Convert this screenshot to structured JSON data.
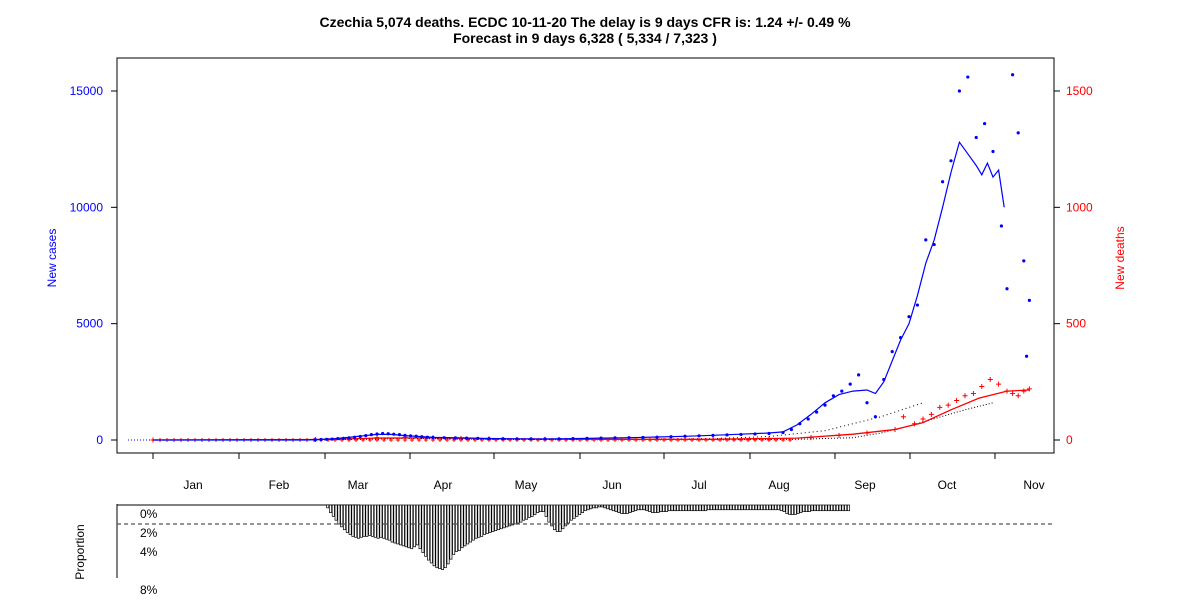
{
  "title_line1": "Czechia 5,074 deaths. ECDC 10-11-20 The delay is 9 days CFR is: 1.24 +/- 0.49 %",
  "title_line2": "Forecast in 9 days 6,328 ( 5,334 / 7,323 )",
  "colors": {
    "cases": "#0000ff",
    "deaths": "#ff0000",
    "forecast": "#000000",
    "proportion": "#000000"
  },
  "chart_data": [
    {
      "type": "line",
      "ylabel_left": "New cases",
      "ylabel_right": "New deaths",
      "months": [
        "Jan",
        "Feb",
        "Mar",
        "Apr",
        "May",
        "Jun",
        "Jul",
        "Aug",
        "Sep",
        "Oct",
        "Nov"
      ],
      "left_ticks": [
        "0",
        "5000",
        "10000",
        "15000"
      ],
      "right_ticks": [
        "0",
        "500",
        "1000",
        "1500"
      ],
      "ylim_left": [
        0,
        16000
      ],
      "ylim_right": [
        0,
        1600
      ],
      "cases_points": [
        [
          58,
          10
        ],
        [
          60,
          20
        ],
        [
          62,
          30
        ],
        [
          64,
          40
        ],
        [
          66,
          60
        ],
        [
          68,
          70
        ],
        [
          70,
          90
        ],
        [
          72,
          120
        ],
        [
          74,
          150
        ],
        [
          76,
          190
        ],
        [
          78,
          230
        ],
        [
          80,
          260
        ],
        [
          82,
          280
        ],
        [
          84,
          270
        ],
        [
          86,
          250
        ],
        [
          88,
          230
        ],
        [
          90,
          200
        ],
        [
          92,
          180
        ],
        [
          94,
          160
        ],
        [
          96,
          140
        ],
        [
          98,
          120
        ],
        [
          100,
          110
        ],
        [
          104,
          100
        ],
        [
          108,
          90
        ],
        [
          112,
          80
        ],
        [
          116,
          70
        ],
        [
          120,
          60
        ],
        [
          125,
          55
        ],
        [
          130,
          50
        ],
        [
          135,
          50
        ],
        [
          140,
          45
        ],
        [
          145,
          50
        ],
        [
          150,
          60
        ],
        [
          155,
          70
        ],
        [
          160,
          80
        ],
        [
          165,
          90
        ],
        [
          170,
          100
        ],
        [
          175,
          110
        ],
        [
          180,
          120
        ],
        [
          185,
          140
        ],
        [
          190,
          160
        ],
        [
          195,
          180
        ],
        [
          200,
          200
        ],
        [
          205,
          220
        ],
        [
          210,
          240
        ],
        [
          215,
          260
        ],
        [
          220,
          280
        ],
        [
          225,
          320
        ],
        [
          228,
          450
        ],
        [
          231,
          700
        ],
        [
          234,
          900
        ],
        [
          237,
          1200
        ],
        [
          240,
          1500
        ],
        [
          243,
          1900
        ],
        [
          246,
          2100
        ],
        [
          249,
          2400
        ],
        [
          252,
          2800
        ],
        [
          255,
          1600
        ],
        [
          258,
          1000
        ],
        [
          261,
          2600
        ],
        [
          264,
          3800
        ],
        [
          267,
          4400
        ],
        [
          270,
          5300
        ],
        [
          273,
          5800
        ],
        [
          276,
          8600
        ],
        [
          279,
          8400
        ],
        [
          282,
          11100
        ],
        [
          285,
          12000
        ],
        [
          288,
          15000
        ],
        [
          291,
          15600
        ],
        [
          294,
          13000
        ],
        [
          297,
          13600
        ],
        [
          300,
          12400
        ],
        [
          303,
          9200
        ],
        [
          305,
          6500
        ],
        [
          307,
          15700
        ],
        [
          309,
          13200
        ],
        [
          311,
          7700
        ],
        [
          312,
          3600
        ],
        [
          313,
          6000
        ]
      ],
      "cases_avg": [
        [
          0,
          0
        ],
        [
          55,
          0
        ],
        [
          60,
          25
        ],
        [
          65,
          60
        ],
        [
          70,
          110
        ],
        [
          75,
          180
        ],
        [
          80,
          240
        ],
        [
          85,
          240
        ],
        [
          90,
          190
        ],
        [
          95,
          150
        ],
        [
          100,
          110
        ],
        [
          110,
          90
        ],
        [
          120,
          65
        ],
        [
          130,
          50
        ],
        [
          140,
          45
        ],
        [
          150,
          60
        ],
        [
          160,
          80
        ],
        [
          170,
          100
        ],
        [
          180,
          130
        ],
        [
          190,
          160
        ],
        [
          200,
          200
        ],
        [
          210,
          250
        ],
        [
          220,
          300
        ],
        [
          225,
          350
        ],
        [
          230,
          650
        ],
        [
          235,
          1100
        ],
        [
          240,
          1600
        ],
        [
          245,
          1950
        ],
        [
          250,
          2100
        ],
        [
          255,
          2150
        ],
        [
          258,
          2000
        ],
        [
          261,
          2500
        ],
        [
          264,
          3400
        ],
        [
          267,
          4300
        ],
        [
          270,
          5000
        ],
        [
          273,
          6200
        ],
        [
          276,
          7600
        ],
        [
          279,
          8600
        ],
        [
          282,
          10000
        ],
        [
          285,
          11500
        ],
        [
          288,
          12800
        ],
        [
          291,
          12300
        ],
        [
          294,
          11800
        ],
        [
          296,
          11400
        ],
        [
          298,
          11900
        ],
        [
          300,
          11300
        ],
        [
          302,
          11600
        ],
        [
          304,
          10000
        ]
      ],
      "deaths_points": [
        [
          0,
          0
        ],
        [
          58,
          2
        ],
        [
          70,
          5
        ],
        [
          80,
          10
        ],
        [
          90,
          12
        ],
        [
          100,
          10
        ],
        [
          110,
          7
        ],
        [
          120,
          5
        ],
        [
          140,
          3
        ],
        [
          160,
          3
        ],
        [
          180,
          3
        ],
        [
          200,
          3
        ],
        [
          220,
          5
        ],
        [
          235,
          10
        ],
        [
          245,
          20
        ],
        [
          255,
          30
        ],
        [
          265,
          45
        ],
        [
          268,
          100
        ],
        [
          272,
          70
        ],
        [
          275,
          90
        ],
        [
          278,
          110
        ],
        [
          281,
          140
        ],
        [
          284,
          150
        ],
        [
          287,
          170
        ],
        [
          290,
          190
        ],
        [
          293,
          200
        ],
        [
          296,
          230
        ],
        [
          299,
          260
        ],
        [
          302,
          240
        ],
        [
          305,
          210
        ],
        [
          307,
          200
        ],
        [
          309,
          190
        ],
        [
          311,
          210
        ],
        [
          313,
          220
        ]
      ],
      "deaths_avg": [
        [
          0,
          0
        ],
        [
          60,
          2
        ],
        [
          80,
          8
        ],
        [
          100,
          9
        ],
        [
          120,
          5
        ],
        [
          160,
          3
        ],
        [
          200,
          3
        ],
        [
          230,
          8
        ],
        [
          250,
          25
        ],
        [
          265,
          45
        ],
        [
          275,
          75
        ],
        [
          285,
          130
        ],
        [
          295,
          180
        ],
        [
          305,
          210
        ],
        [
          313,
          215
        ]
      ],
      "forecast_line": [
        [
          0,
          0
        ],
        [
          60,
          10
        ],
        [
          70,
          60
        ],
        [
          80,
          80
        ],
        [
          90,
          70
        ],
        [
          100,
          50
        ],
        [
          120,
          30
        ],
        [
          140,
          20
        ],
        [
          160,
          30
        ],
        [
          200,
          60
        ],
        [
          220,
          150
        ],
        [
          240,
          400
        ],
        [
          250,
          700
        ],
        [
          260,
          1000
        ],
        [
          270,
          1400
        ],
        [
          275,
          1600
        ]
      ],
      "forecast_right": [
        [
          60,
          5
        ],
        [
          80,
          40
        ],
        [
          90,
          80
        ],
        [
          100,
          60
        ],
        [
          120,
          30
        ],
        [
          160,
          10
        ],
        [
          200,
          10
        ],
        [
          230,
          30
        ],
        [
          250,
          100
        ],
        [
          260,
          300
        ],
        [
          270,
          600
        ],
        [
          280,
          950
        ],
        [
          290,
          1300
        ],
        [
          300,
          1600
        ]
      ]
    },
    {
      "type": "bar",
      "ylabel": "Proportion",
      "tick_labels": [
        "0%",
        "2%",
        "4%",
        "8%"
      ],
      "dashed_level": 2,
      "values": [
        0,
        0,
        0,
        0,
        0,
        0,
        0,
        0,
        0,
        0,
        0,
        0,
        0,
        0,
        0,
        0,
        0,
        0,
        0,
        0,
        0,
        0,
        0,
        0,
        0,
        0,
        0,
        0,
        0,
        0,
        0,
        0,
        0,
        0,
        0,
        0,
        0,
        0,
        0,
        0,
        0,
        0,
        0,
        0,
        0,
        0,
        0,
        0,
        0,
        0,
        0,
        0,
        0,
        0,
        0,
        0,
        0,
        0,
        0,
        0,
        0,
        0,
        0.3,
        0.8,
        1.2,
        1.6,
        2,
        2.3,
        2.6,
        2.9,
        3.1,
        3.3,
        3.4,
        3.5,
        3.4,
        3.3,
        3.3,
        3.2,
        3.3,
        3.4,
        3.5,
        3.4,
        3.5,
        3.6,
        3.7,
        3.9,
        4.0,
        4.1,
        4.2,
        4.3,
        4.4,
        4.5,
        4.6,
        4.4,
        4.2,
        4.6,
        5.0,
        5.4,
        5.8,
        6.1,
        6.4,
        6.6,
        6.7,
        6.8,
        6.6,
        6.2,
        5.7,
        5.2,
        4.9,
        4.8,
        4.5,
        4.3,
        4.1,
        3.9,
        3.7,
        3.5,
        3.4,
        3.3,
        3.1,
        3.0,
        2.9,
        2.8,
        2.7,
        2.6,
        2.5,
        2.4,
        2.3,
        2.2,
        2.1,
        2.0,
        1.9,
        1.8,
        1.6,
        1.5,
        1.3,
        1.2,
        1.0,
        0.8,
        0.7,
        0.7,
        1.2,
        1.8,
        2.2,
        2.6,
        2.8,
        2.8,
        2.5,
        2.2,
        1.9,
        1.6,
        1.4,
        1.2,
        1.0,
        0.8,
        0.6,
        0.5,
        0.4,
        0.3,
        0.3,
        0.2,
        0.2,
        0.3,
        0.4,
        0.5,
        0.6,
        0.7,
        0.8,
        0.9,
        0.9,
        0.9,
        0.8,
        0.7,
        0.6,
        0.5,
        0.5,
        0.5,
        0.6,
        0.7,
        0.8,
        0.8,
        0.8,
        0.7,
        0.7,
        0.7,
        0.6,
        0.6,
        0.6,
        0.6,
        0.6,
        0.6,
        0.6,
        0.6,
        0.6,
        0.6,
        0.6,
        0.6,
        0.6,
        0.6,
        0.5,
        0.5,
        0.5,
        0.5,
        0.5,
        0.5,
        0.5,
        0.5,
        0.5,
        0.5,
        0.5,
        0.5,
        0.5,
        0.5,
        0.5,
        0.5,
        0.5,
        0.5,
        0.5,
        0.5,
        0.5,
        0.5,
        0.5,
        0.5,
        0.5,
        0.5,
        0.6,
        0.7,
        0.9,
        1.0,
        1.0,
        1.0,
        0.9,
        0.8,
        0.7,
        0.7,
        0.7,
        0.6,
        0.6,
        0.6,
        0.6,
        0.6,
        0.6,
        0.6,
        0.6,
        0.6,
        0.6,
        0.6,
        0.6,
        0.6,
        0.6
      ]
    }
  ]
}
